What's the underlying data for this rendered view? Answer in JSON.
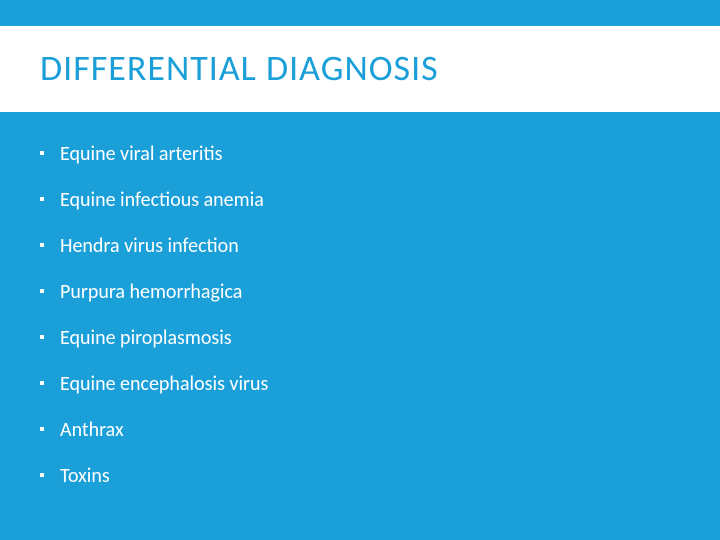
{
  "slide": {
    "background_color": "#1b9fd9",
    "title_box_background": "#ffffff",
    "title": {
      "text": "DIFFERENTIAL DIAGNOSIS",
      "color": "#1b9fd9",
      "font_size": 36,
      "font_weight": 400,
      "letter_spacing": 1
    },
    "bullets": {
      "text_color": "#ffffff",
      "font_size": 20,
      "dot_color": "#ffffff",
      "dot_size": 4,
      "items": [
        {
          "text": "Equine viral arteritis"
        },
        {
          "text": "Equine infectious anemia"
        },
        {
          "text": "Hendra virus infection"
        },
        {
          "text": "Purpura hemorrhagica"
        },
        {
          "text": "Equine piroplasmosis"
        },
        {
          "text": "Equine encephalosis virus"
        },
        {
          "text": "Anthrax"
        },
        {
          "text": "Toxins"
        }
      ]
    }
  }
}
